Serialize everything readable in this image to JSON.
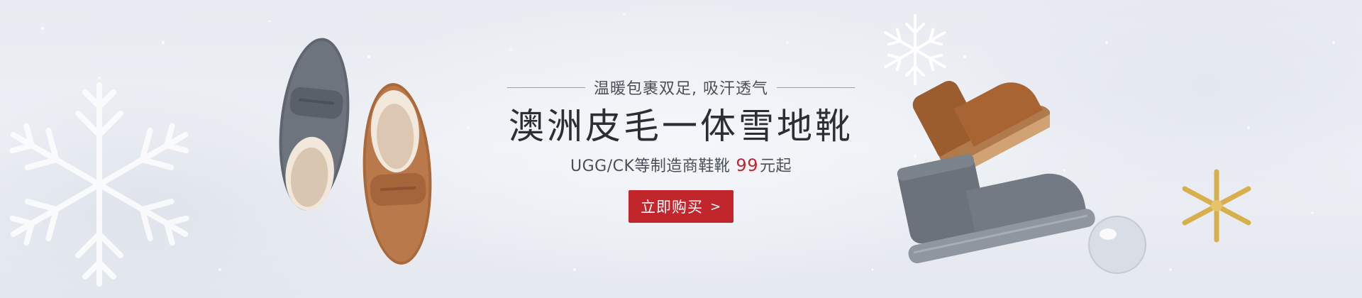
{
  "banner": {
    "tagline": "温暖包裹双足, 吸汗透气",
    "title": "澳洲皮毛一体雪地靴",
    "subtitle_prefix": "UGG/CK等制造商鞋靴",
    "price": "99",
    "price_suffix": "元起",
    "cta_label": "立即购买",
    "cta_arrow": ">"
  },
  "colors": {
    "accent_red": "#c1262c",
    "text_dark": "#2b2e33",
    "snow": "#edf0f5"
  },
  "icons": [
    "snowflake-icon",
    "loafer-gray-image",
    "loafer-brown-image",
    "boot-brown-image",
    "boot-gray-image",
    "star-ornament-icon",
    "glass-ball-icon"
  ]
}
